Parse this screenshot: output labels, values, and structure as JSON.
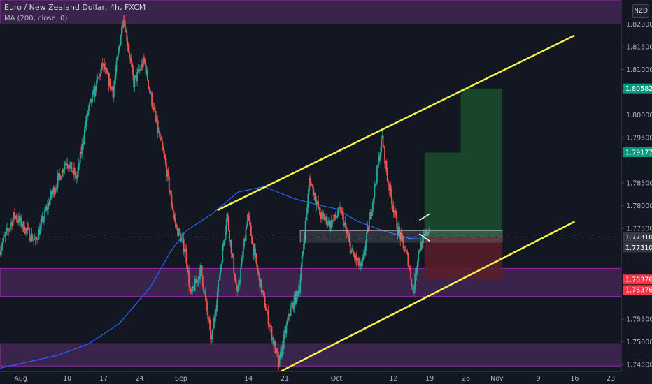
{
  "header": {
    "title": "Euro / New Zealand Dollar, 4h, FXCM",
    "indicator": "MA (200, close, 0)",
    "currency": "NZD"
  },
  "colors": {
    "background": "#131722",
    "axis_text": "#b2b5be",
    "up": "#26a69a",
    "down": "#ef5350",
    "ma": "#2962ff",
    "channel": "#f5f34a",
    "zone_fill": "#4a2a5a",
    "zone_border": "#9c27b0",
    "target_fill": "#1b4d2b",
    "stop_fill": "#5a1e2a",
    "badge_green": "#089981",
    "badge_red": "#f23645",
    "badge_gray": "#363a45"
  },
  "chart_data": {
    "type": "candlestick",
    "ylim": [
      1.7435,
      1.8253
    ],
    "y_ticks": [
      "1.82000",
      "1.81500",
      "1.81000",
      "1.80000",
      "1.79500",
      "1.78500",
      "1.78000",
      "1.77500",
      "1.75500",
      "1.75000",
      "1.74500"
    ],
    "x_ticks": [
      "Aug",
      "10",
      "17",
      "24",
      "Sep",
      "14",
      "21",
      "Oct",
      "12",
      "19",
      "26",
      "Nov",
      "9",
      "16",
      "23"
    ],
    "price_badges": [
      {
        "value": "1.80582",
        "kind": "green"
      },
      {
        "value": "1.79177",
        "kind": "green"
      },
      {
        "value": "1.77310",
        "kind": "gray"
      },
      {
        "value": "1.77310",
        "kind": "gray"
      },
      {
        "value": "1.76376",
        "kind": "red"
      },
      {
        "value": "1.76376",
        "kind": "red"
      }
    ],
    "zones": [
      [
        1.82,
        1.8253
      ],
      [
        1.76,
        1.7662
      ],
      [
        1.7447,
        1.7496
      ]
    ],
    "channel_upper": [
      [
        "2020-09-08",
        1.779
      ],
      [
        "2020-11-16",
        1.8175
      ]
    ],
    "channel_lower": [
      [
        "2020-09-19",
        1.7428
      ],
      [
        "2020-11-16",
        1.7765
      ]
    ],
    "current_price": 1.7731,
    "entry_box": [
      [
        "2020-09-24",
        "2020-11-02"
      ],
      [
        1.772,
        1.7745
      ]
    ],
    "target_zones": [
      [
        [
          "2020-10-18",
          "2020-10-25"
        ],
        [
          1.7731,
          1.7917
        ]
      ],
      [
        [
          "2020-10-25",
          "2020-11-02"
        ],
        [
          1.7731,
          1.8058
        ]
      ]
    ],
    "stop_zone": [
      [
        "2020-10-18",
        "2020-11-02"
      ],
      [
        1.7638,
        1.7731
      ]
    ],
    "ma_points": [
      [
        "2020-07-28",
        1.7442
      ],
      [
        "2020-08-08",
        1.747
      ],
      [
        "2020-08-14",
        1.7495
      ],
      [
        "2020-08-20",
        1.754
      ],
      [
        "2020-08-26",
        1.762
      ],
      [
        "2020-08-30",
        1.77
      ],
      [
        "2020-09-02",
        1.7745
      ],
      [
        "2020-09-07",
        1.7782
      ],
      [
        "2020-09-12",
        1.783
      ],
      [
        "2020-09-17",
        1.7842
      ],
      [
        "2020-09-23",
        1.7815
      ],
      [
        "2020-09-27",
        1.7803
      ],
      [
        "2020-10-01",
        1.7793
      ],
      [
        "2020-10-05",
        1.7766
      ],
      [
        "2020-10-10",
        1.7745
      ],
      [
        "2020-10-15",
        1.7728
      ],
      [
        "2020-10-18",
        1.7726
      ]
    ],
    "price_path": [
      [
        "2020-07-28",
        1.77
      ],
      [
        "2020-07-31",
        1.778
      ],
      [
        "2020-08-04",
        1.772
      ],
      [
        "2020-08-07",
        1.782
      ],
      [
        "2020-08-10",
        1.79
      ],
      [
        "2020-08-12",
        1.786
      ],
      [
        "2020-08-14",
        1.8
      ],
      [
        "2020-08-17",
        1.811
      ],
      [
        "2020-08-19",
        1.805
      ],
      [
        "2020-08-21",
        1.822
      ],
      [
        "2020-08-23",
        1.807
      ],
      [
        "2020-08-25",
        1.812
      ],
      [
        "2020-08-27",
        1.8
      ],
      [
        "2020-08-29",
        1.79
      ],
      [
        "2020-08-31",
        1.776
      ],
      [
        "2020-09-02",
        1.77
      ],
      [
        "2020-09-03",
        1.76
      ],
      [
        "2020-09-05",
        1.766
      ],
      [
        "2020-09-07",
        1.75
      ],
      [
        "2020-09-10",
        1.778
      ],
      [
        "2020-09-12",
        1.76
      ],
      [
        "2020-09-14",
        1.778
      ],
      [
        "2020-09-16",
        1.765
      ],
      [
        "2020-09-18",
        1.755
      ],
      [
        "2020-09-20",
        1.745
      ],
      [
        "2020-09-22",
        1.756
      ],
      [
        "2020-09-24",
        1.762
      ],
      [
        "2020-09-26",
        1.786
      ],
      [
        "2020-09-28",
        1.778
      ],
      [
        "2020-09-30",
        1.776
      ],
      [
        "2020-10-02",
        1.779
      ],
      [
        "2020-10-04",
        1.77
      ],
      [
        "2020-10-06",
        1.766
      ],
      [
        "2020-10-08",
        1.78
      ],
      [
        "2020-10-10",
        1.795
      ],
      [
        "2020-10-11",
        1.786
      ],
      [
        "2020-10-13",
        1.775
      ],
      [
        "2020-10-15",
        1.768
      ],
      [
        "2020-10-16",
        1.761
      ],
      [
        "2020-10-17",
        1.77
      ],
      [
        "2020-10-19",
        1.775
      ]
    ],
    "pattern_lines": [
      [
        [
          "2020-10-17",
          1.7768
        ],
        [
          "2020-10-19",
          1.7782
        ]
      ],
      [
        [
          "2020-10-17",
          1.7738
        ],
        [
          "2020-10-19",
          1.7722
        ]
      ]
    ]
  }
}
